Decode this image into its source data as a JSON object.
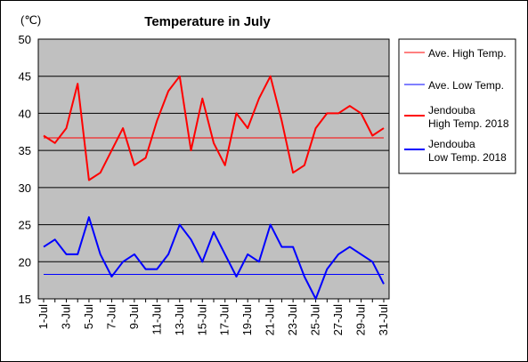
{
  "chart_data": {
    "type": "line",
    "title": "Temperature in July",
    "unit_label": "(℃)",
    "ylim": [
      15,
      50
    ],
    "y_ticks": [
      "15",
      "20",
      "25",
      "30",
      "35",
      "40",
      "45",
      "50"
    ],
    "grid": true,
    "legend_position": "right",
    "plot_background": "#c0c0c0",
    "categories": [
      "1-Jul",
      "2-Jul",
      "3-Jul",
      "4-Jul",
      "5-Jul",
      "6-Jul",
      "7-Jul",
      "8-Jul",
      "9-Jul",
      "10-Jul",
      "11-Jul",
      "12-Jul",
      "13-Jul",
      "14-Jul",
      "15-Jul",
      "16-Jul",
      "17-Jul",
      "18-Jul",
      "19-Jul",
      "20-Jul",
      "21-Jul",
      "22-Jul",
      "23-Jul",
      "24-Jul",
      "25-Jul",
      "26-Jul",
      "27-Jul",
      "28-Jul",
      "29-Jul",
      "30-Jul",
      "31-Jul"
    ],
    "x_tick_labels": [
      "1-Jul",
      "3-Jul",
      "5-Jul",
      "7-Jul",
      "9-Jul",
      "11-Jul",
      "13-Jul",
      "15-Jul",
      "17-Jul",
      "19-Jul",
      "21-Jul",
      "23-Jul",
      "25-Jul",
      "27-Jul",
      "29-Jul",
      "31-Jul"
    ],
    "series": [
      {
        "name": "Ave. High Temp.",
        "color": "#ff0000",
        "width": 1,
        "values": [
          36.7,
          36.7,
          36.7,
          36.7,
          36.7,
          36.7,
          36.7,
          36.7,
          36.7,
          36.7,
          36.7,
          36.7,
          36.7,
          36.7,
          36.7,
          36.7,
          36.7,
          36.7,
          36.7,
          36.7,
          36.7,
          36.7,
          36.7,
          36.7,
          36.7,
          36.7,
          36.7,
          36.7,
          36.7,
          36.7,
          36.7
        ]
      },
      {
        "name": "Ave. Low Temp.",
        "color": "#0000ff",
        "width": 1,
        "values": [
          18.3,
          18.3,
          18.3,
          18.3,
          18.3,
          18.3,
          18.3,
          18.3,
          18.3,
          18.3,
          18.3,
          18.3,
          18.3,
          18.3,
          18.3,
          18.3,
          18.3,
          18.3,
          18.3,
          18.3,
          18.3,
          18.3,
          18.3,
          18.3,
          18.3,
          18.3,
          18.3,
          18.3,
          18.3,
          18.3,
          18.3
        ]
      },
      {
        "name": "Jendouba High Temp. 2018",
        "color": "#ff0000",
        "width": 2,
        "values": [
          37,
          36,
          38,
          44,
          31,
          32,
          35,
          38,
          33,
          34,
          39,
          43,
          45,
          35,
          42,
          36,
          33,
          40,
          38,
          42,
          45,
          39,
          32,
          33,
          38,
          40,
          40,
          41,
          40,
          37,
          38
        ]
      },
      {
        "name": "Jendouba Low Temp. 2018",
        "color": "#0000ff",
        "width": 2,
        "values": [
          22,
          23,
          21,
          21,
          26,
          21,
          18,
          20,
          21,
          19,
          19,
          21,
          25,
          23,
          20,
          24,
          21,
          18,
          21,
          20,
          25,
          22,
          22,
          18,
          15,
          19,
          21,
          22,
          21,
          20,
          17
        ]
      }
    ],
    "legend": [
      {
        "lines": [
          "Ave. High Temp."
        ],
        "color": "#ff0000",
        "width": 1
      },
      {
        "lines": [
          "Ave. Low Temp."
        ],
        "color": "#0000ff",
        "width": 1
      },
      {
        "lines": [
          "Jendouba",
          "High Temp. 2018"
        ],
        "color": "#ff0000",
        "width": 2
      },
      {
        "lines": [
          "Jendouba",
          "Low Temp. 2018"
        ],
        "color": "#0000ff",
        "width": 2
      }
    ]
  }
}
